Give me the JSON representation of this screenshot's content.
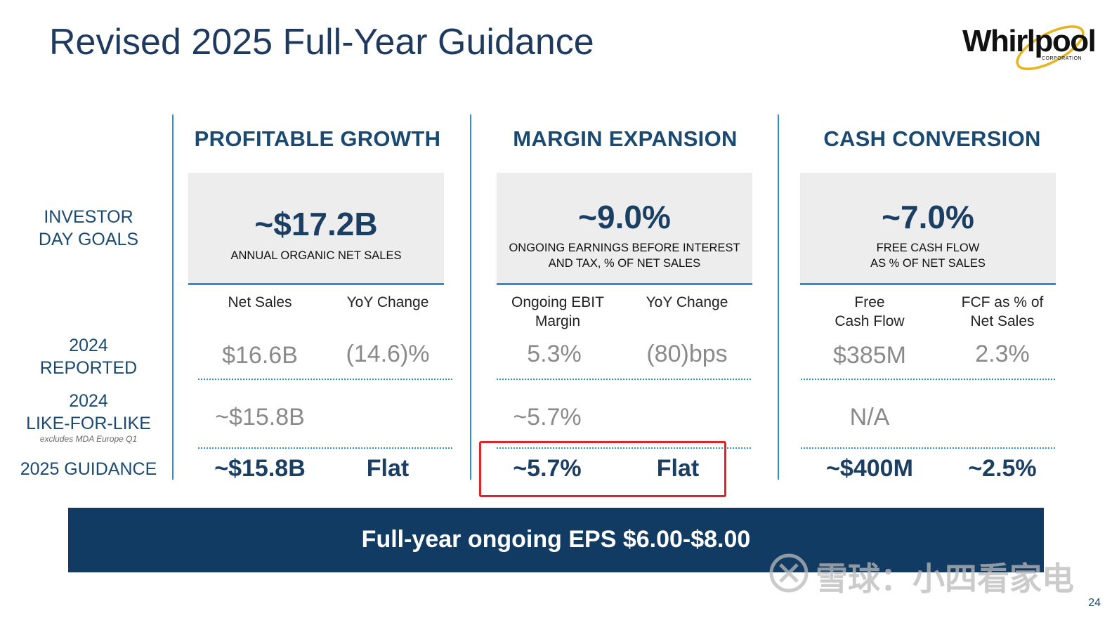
{
  "title": "Revised 2025 Full-Year Guidance",
  "logo": {
    "wordmark": "Whirlpool",
    "sub": "CORPORATION"
  },
  "row_labels": {
    "investor_day_goals": [
      "INVESTOR",
      "DAY GOALS"
    ],
    "reported_2024": [
      "2024",
      "REPORTED"
    ],
    "like_for_like_2024": [
      "2024",
      "LIKE-FOR-LIKE"
    ],
    "like_for_like_note": "excludes MDA Europe Q1",
    "guidance_2025": "2025 GUIDANCE"
  },
  "columns": [
    {
      "heading": "PROFITABLE GROWTH",
      "goal_value": "~$17.2B",
      "goal_desc": [
        "ANNUAL ORGANIC NET SALES"
      ],
      "sub_heads": [
        [
          "Net Sales"
        ],
        [
          "YoY Change"
        ]
      ],
      "reported_2024": [
        "$16.6B",
        "(14.6)%"
      ],
      "like_for_like_2024": [
        "~$15.8B",
        ""
      ],
      "guidance_2025": [
        "~$15.8B",
        "Flat"
      ]
    },
    {
      "heading": "MARGIN EXPANSION",
      "goal_value": "~9.0%",
      "goal_desc": [
        "ONGOING EARNINGS BEFORE INTEREST",
        "AND TAX, % OF NET SALES"
      ],
      "sub_heads": [
        [
          "Ongoing EBIT",
          "Margin"
        ],
        [
          "YoY Change"
        ]
      ],
      "reported_2024": [
        "5.3%",
        "(80)bps"
      ],
      "like_for_like_2024": [
        "~5.7%",
        ""
      ],
      "guidance_2025": [
        "~5.7%",
        "Flat"
      ]
    },
    {
      "heading": "CASH CONVERSION",
      "goal_value": "~7.0%",
      "goal_desc": [
        "FREE CASH FLOW",
        "AS % OF NET SALES"
      ],
      "sub_heads": [
        [
          "Free",
          "Cash Flow"
        ],
        [
          "FCF as % of",
          "Net Sales"
        ]
      ],
      "reported_2024": [
        "$385M",
        "2.3%"
      ],
      "like_for_like_2024": [
        "N/A",
        ""
      ],
      "guidance_2025": [
        "~$400M",
        "~2.5%"
      ]
    }
  ],
  "footer": "Full-year ongoing EPS $6.00-$8.00",
  "page_number": "24",
  "watermark": "雪球：小四看家电",
  "colors": {
    "navy": "#1a3f63",
    "accent_blue": "#2b8fd6",
    "highlight_red": "#e8202a",
    "footer_bg": "#123b63",
    "logo_gold": "#e6b41e"
  }
}
